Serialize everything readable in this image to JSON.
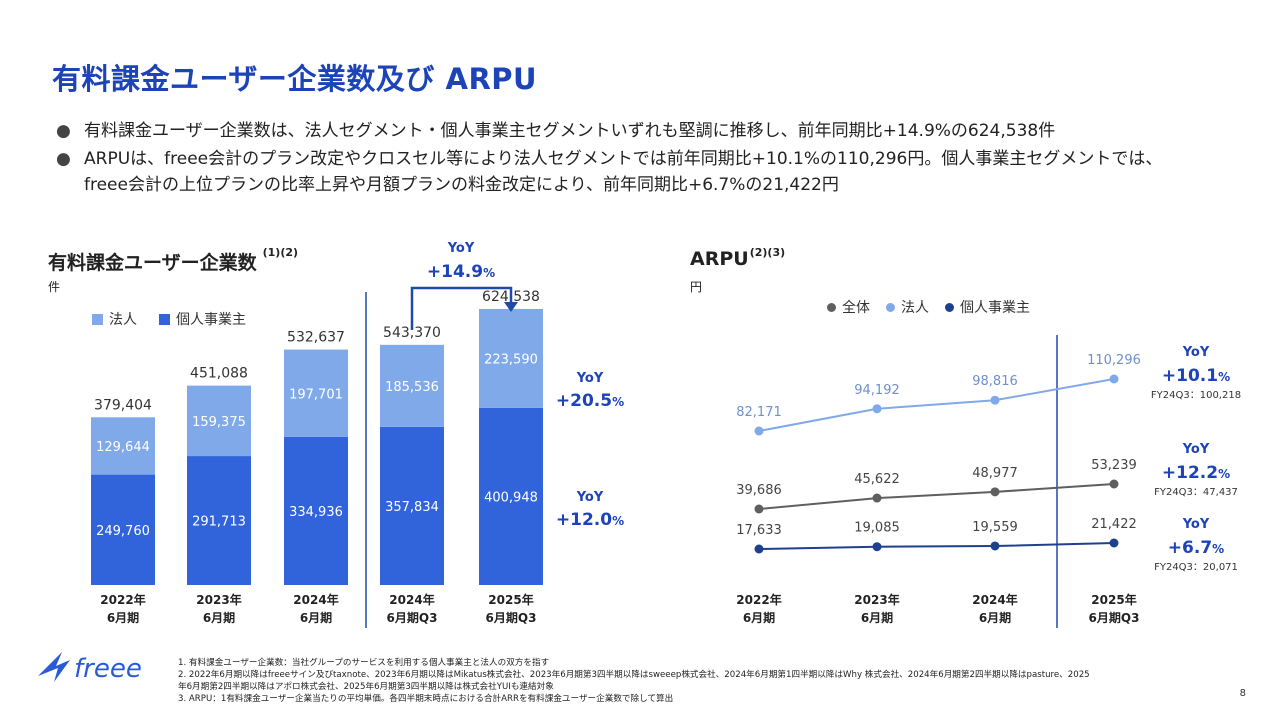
{
  "title": "有料課金ユーザー企業数及び ARPU",
  "bullets": [
    "有料課金ユーザー企業数は、法人セグメント・個人事業主セグメントいずれも堅調に推移し、前年同期比+14.9%の624,538件",
    "ARPUは、freee会計のプラン改定やクロスセル等により法人セグメントでは前年同期比+10.1%の110,296円。個人事業主セグメントでは、",
    "freee会計の上位プランの比率上昇や月額プランの料金改定により、前年同期比+6.7%の21,422円"
  ],
  "left_section": {
    "title": "有料課金ユーザー企業数",
    "note_ref": "(1)(2)",
    "unit": "件",
    "legend": [
      "法人",
      "個人事業主"
    ]
  },
  "right_section": {
    "title": "ARPU",
    "note_ref": "(2)(3)",
    "unit": "円",
    "legend": [
      "全体",
      "法人",
      "個人事業主"
    ]
  },
  "colors": {
    "title": "#1c43b8",
    "corp": "#80a9ea",
    "indiv": "#3164db",
    "line_all": "#5f5f5f",
    "line_corp": "#80a9ea",
    "line_indiv": "#1f3f8f",
    "arrow": "#1f4ba8"
  },
  "chart_data": [
    {
      "type": "bar",
      "stacked": true,
      "categories": [
        "2022年|6月期",
        "2023年|6月期",
        "2024年|6月期",
        "2024年|6月期Q3",
        "2025年|6月期Q3"
      ],
      "series": [
        {
          "name": "個人事業主",
          "values": [
            249760,
            291713,
            334936,
            357834,
            400948
          ],
          "labels": [
            "249,760",
            "291,713",
            "334,936",
            "357,834",
            "400,948"
          ]
        },
        {
          "name": "法人",
          "values": [
            129644,
            159375,
            197701,
            185536,
            223590
          ],
          "labels": [
            "129,644",
            "159,375",
            "197,701",
            "185,536",
            "223,590"
          ]
        }
      ],
      "totals": [
        "379,404",
        "451,088",
        "532,637",
        "543,370",
        "624,538"
      ],
      "total_values": [
        379404,
        451088,
        532637,
        543370,
        624538
      ],
      "yoy_total": {
        "label": "YoY",
        "value": "+14.9",
        "pct": "%"
      },
      "yoy_corp": {
        "label": "YoY",
        "value": "+20.5",
        "pct": "%"
      },
      "yoy_indiv": {
        "label": "YoY",
        "value": "+12.0",
        "pct": "%"
      }
    },
    {
      "type": "line",
      "categories": [
        "2022年|6月期",
        "2023年|6月期",
        "2024年|6月期",
        "2025年|6月期Q3"
      ],
      "series": [
        {
          "name": "法人",
          "values": [
            82171,
            94192,
            98816,
            110296
          ],
          "labels": [
            "82,171",
            "94,192",
            "98,816",
            "110,296"
          ]
        },
        {
          "name": "全体",
          "values": [
            39686,
            45622,
            48977,
            53239
          ],
          "labels": [
            "39,686",
            "45,622",
            "48,977",
            "53,239"
          ]
        },
        {
          "name": "個人事業主",
          "values": [
            17633,
            19085,
            19559,
            21422
          ],
          "labels": [
            "17,633",
            "19,085",
            "19,559",
            "21,422"
          ]
        }
      ],
      "yoy": [
        {
          "label": "YoY",
          "value": "+10.1",
          "pct": "%",
          "ref": "FY24Q3：100,218"
        },
        {
          "label": "YoY",
          "value": "+12.2",
          "pct": "%",
          "ref": "FY24Q3：47,437"
        },
        {
          "label": "YoY",
          "value": "+6.7",
          "pct": "%",
          "ref": "FY24Q3：20,071"
        }
      ]
    }
  ],
  "footnotes": [
    "1. 有料課金ユーザー企業数：当社グループのサービスを利用する個人事業主と法人の双方を指す",
    "2. 2022年6月期以降はfreeeサイン及びtaxnote、2023年6月期以降はMikatus株式会社、2023年6月期第3四半期以降はsweeep株式会社、2024年6月期第1四半期以降はWhy 株式会社、2024年6月期第2四半期以降はpasture、2025",
    "年6月期第2四半期以降はアポロ株式会社、2025年6月期第3四半期以降は株式会社YUIも連結対象",
    "3. ARPU：1有料課金ユーザー企業当たりの平均単価。各四半期末時点における合計ARRを有料課金ユーザー企業数で除して算出"
  ],
  "logo_text": "freee",
  "page_number": "8"
}
